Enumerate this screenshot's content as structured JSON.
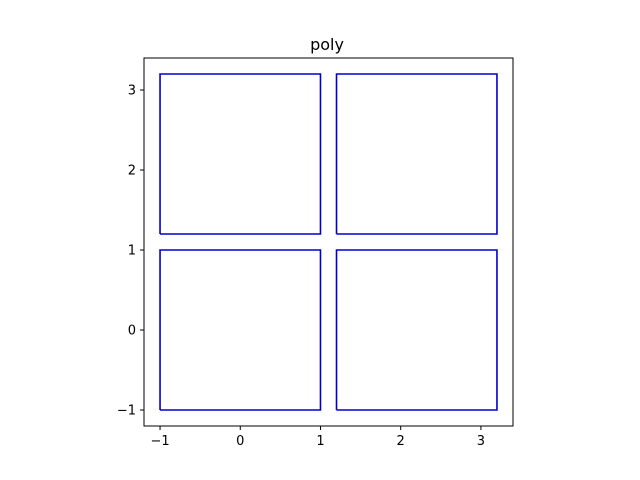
{
  "chart_data": {
    "type": "polygon",
    "title": "poly",
    "xlabel": "",
    "ylabel": "",
    "xlim": [
      -1.2,
      3.4
    ],
    "ylim": [
      -1.2,
      3.4
    ],
    "xticks": [
      -1,
      0,
      1,
      2,
      3
    ],
    "yticks": [
      -1,
      0,
      1,
      2,
      3
    ],
    "xtick_labels": [
      "−1",
      "0",
      "1",
      "2",
      "3"
    ],
    "ytick_labels": [
      "−1",
      "0",
      "1",
      "2",
      "3"
    ],
    "grid": false,
    "line_color": "#0000cc",
    "polygons": [
      {
        "x": [
          -1,
          1,
          1,
          -1,
          -1
        ],
        "y": [
          -1,
          -1,
          1,
          1,
          -1
        ]
      },
      {
        "x": [
          1.2,
          3.2,
          3.2,
          1.2,
          1.2
        ],
        "y": [
          -1,
          -1,
          1,
          1,
          -1
        ]
      },
      {
        "x": [
          -1,
          1,
          1,
          -1,
          -1
        ],
        "y": [
          1.2,
          1.2,
          3.2,
          3.2,
          1.2
        ]
      },
      {
        "x": [
          1.2,
          3.2,
          3.2,
          1.2,
          1.2
        ],
        "y": [
          1.2,
          1.2,
          3.2,
          3.2,
          1.2
        ]
      }
    ]
  }
}
